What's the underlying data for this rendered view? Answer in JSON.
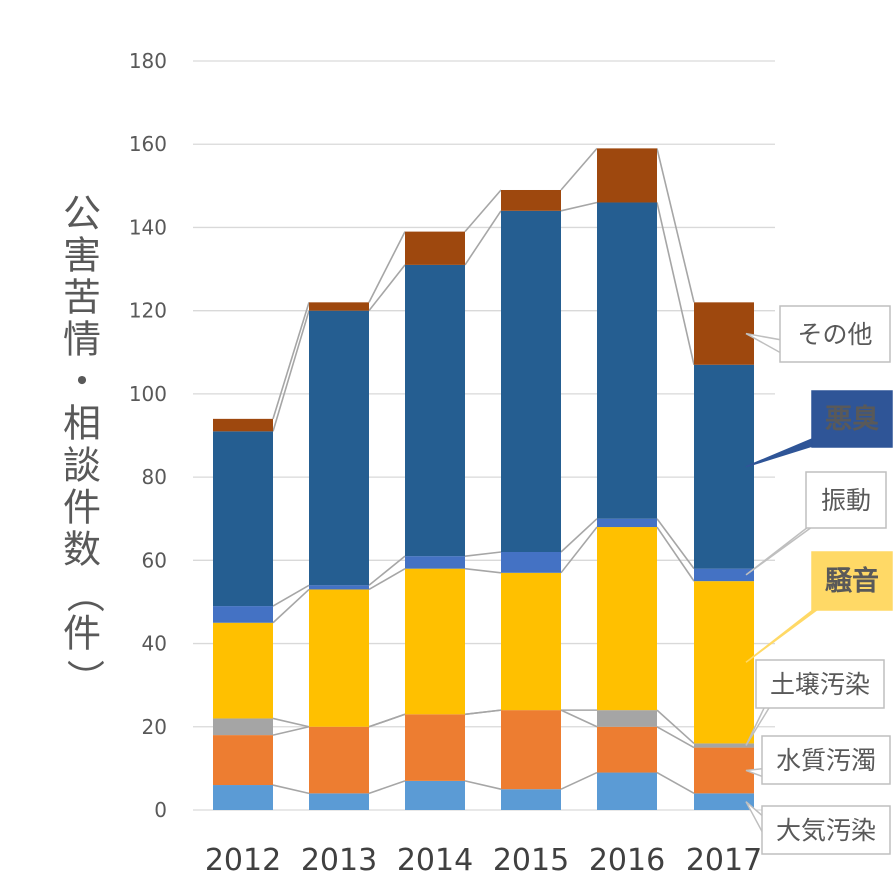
{
  "chart_data": {
    "type": "bar",
    "stacked": true,
    "title": "",
    "xlabel": "",
    "ylabel": "公害苦情・相談件数（件）",
    "ylim": [
      0,
      180
    ],
    "yticks": [
      0,
      20,
      40,
      60,
      80,
      100,
      120,
      140,
      160,
      180
    ],
    "grid": true,
    "categories": [
      "2012",
      "2013",
      "2014",
      "2015",
      "2016",
      "2017"
    ],
    "series": [
      {
        "name": "大気汚染",
        "color": "#5B9BD5",
        "values": [
          6,
          4,
          7,
          5,
          9,
          4
        ]
      },
      {
        "name": "水質汚濁",
        "color": "#ED7D31",
        "values": [
          12,
          16,
          16,
          19,
          11,
          11
        ]
      },
      {
        "name": "土壌汚染",
        "color": "#A5A5A5",
        "values": [
          4,
          0,
          0,
          0,
          4,
          1
        ]
      },
      {
        "name": "騒音",
        "color": "#FFC000",
        "values": [
          23,
          33,
          35,
          33,
          44,
          39
        ],
        "highlight": true,
        "callout_fill": "#FFD966"
      },
      {
        "name": "振動",
        "color": "#4472C4",
        "values": [
          4,
          1,
          3,
          5,
          2,
          3
        ]
      },
      {
        "name": "悪臭",
        "color": "#255E91",
        "values": [
          42,
          66,
          70,
          82,
          76,
          49
        ],
        "highlight": true,
        "callout_fill": "#2F5597"
      },
      {
        "name": "その他",
        "color": "#9E480E",
        "values": [
          3,
          2,
          8,
          5,
          13,
          15
        ]
      }
    ],
    "legend": "right, callout labels beside last bar"
  }
}
